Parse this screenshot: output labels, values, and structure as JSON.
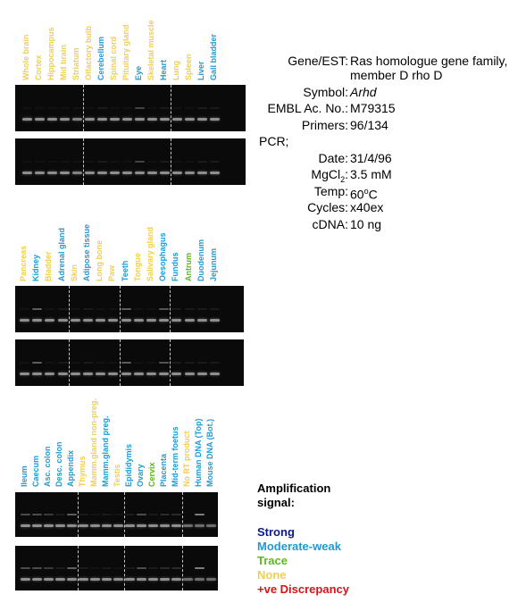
{
  "colors": {
    "strong": "#0a1a8c",
    "moderate_weak": "#1e9bd6",
    "trace": "#5cb81e",
    "none": "#f2cf4a",
    "discrepancy": "#d4161c",
    "gel_bg": "#0a0a0a"
  },
  "panels": [
    {
      "lanes": [
        {
          "label": "Whole brain",
          "signal": "none",
          "top": 0.05,
          "bottom": 0.35
        },
        {
          "label": "Cortex",
          "signal": "none",
          "top": 0.05,
          "bottom": 0.35
        },
        {
          "label": "Hippocampus",
          "signal": "none",
          "top": 0.05,
          "bottom": 0.35
        },
        {
          "label": "Mid brain",
          "signal": "none",
          "top": 0.05,
          "bottom": 0.35
        },
        {
          "label": "Striatum",
          "signal": "none",
          "top": 0.05,
          "bottom": 0.3
        },
        {
          "label": "Olfactory bulb",
          "signal": "none",
          "top": 0.05,
          "bottom": 0.35
        },
        {
          "label": "Cerebellum",
          "signal": "moderate_weak",
          "top": 0.1,
          "bottom": 0.35
        },
        {
          "label": "Spinal cord",
          "signal": "none",
          "top": 0.05,
          "bottom": 0.35
        },
        {
          "label": "Pituitary gland",
          "signal": "none",
          "top": 0.05,
          "bottom": 0.35
        },
        {
          "label": "Eye",
          "signal": "moderate_weak",
          "top": 0.35,
          "bottom": 0.35
        },
        {
          "label": "Skeletal muscle",
          "signal": "none",
          "top": 0.05,
          "bottom": 0.35
        },
        {
          "label": "Heart",
          "signal": "moderate_weak",
          "top": 0.1,
          "bottom": 0.35
        },
        {
          "label": "Lung",
          "signal": "none",
          "top": 0.05,
          "bottom": 0.35
        },
        {
          "label": "Spleen",
          "signal": "none",
          "top": 0.05,
          "bottom": 0.35
        },
        {
          "label": "Liver",
          "signal": "moderate_weak",
          "top": 0.1,
          "bottom": 0.35
        },
        {
          "label": "Gall bladder",
          "signal": "moderate_weak",
          "top": 0.1,
          "bottom": 0.35
        }
      ],
      "dividers_after": [
        4,
        11
      ]
    },
    {
      "lanes": [
        {
          "label": "Pancreas",
          "signal": "none",
          "top": 0.05,
          "bottom": 0.35
        },
        {
          "label": "Kidney",
          "signal": "moderate_weak",
          "top": 0.5,
          "bottom": 0.35
        },
        {
          "label": "Bladder",
          "signal": "none",
          "top": 0.05,
          "bottom": 0.35
        },
        {
          "label": "Adrenal gland",
          "signal": "moderate_weak",
          "top": 0.1,
          "bottom": 0.35
        },
        {
          "label": "Skin",
          "signal": "none",
          "top": 0.05,
          "bottom": 0.35
        },
        {
          "label": "Adipose tissue",
          "signal": "moderate_weak",
          "top": 0.1,
          "bottom": 0.35
        },
        {
          "label": "Long bone",
          "signal": "none",
          "top": 0.05,
          "bottom": 0.35
        },
        {
          "label": "Paw",
          "signal": "none",
          "top": 0.05,
          "bottom": 0.35
        },
        {
          "label": "Teeth",
          "signal": "moderate_weak",
          "top": 0.5,
          "bottom": 0.35
        },
        {
          "label": "Tongue",
          "signal": "none",
          "top": 0.05,
          "bottom": 0.35
        },
        {
          "label": "Salivary gland",
          "signal": "none",
          "top": 0.05,
          "bottom": 0.35
        },
        {
          "label": "Oesophagus",
          "signal": "moderate_weak",
          "top": 0.45,
          "bottom": 0.35
        },
        {
          "label": "Fundus",
          "signal": "moderate_weak",
          "top": 0.1,
          "bottom": 0.35
        },
        {
          "label": "Antrum",
          "signal": "trace",
          "top": 0.1,
          "bottom": 0.35
        },
        {
          "label": "Duodenum",
          "signal": "moderate_weak",
          "top": 0.1,
          "bottom": 0.35
        },
        {
          "label": "Jejunum",
          "signal": "moderate_weak",
          "top": 0.1,
          "bottom": 0.35
        }
      ],
      "dividers_after": [
        3,
        7,
        11
      ]
    },
    {
      "lanes": [
        {
          "label": "Ileum",
          "signal": "moderate_weak",
          "top": 0.4,
          "bottom": 0.35
        },
        {
          "label": "Caecum",
          "signal": "moderate_weak",
          "top": 0.4,
          "bottom": 0.35
        },
        {
          "label": "Asc. colon",
          "signal": "moderate_weak",
          "top": 0.3,
          "bottom": 0.35
        },
        {
          "label": "Desc. colon",
          "signal": "moderate_weak",
          "top": 0.1,
          "bottom": 0.35
        },
        {
          "label": "Appendix",
          "signal": "moderate_weak",
          "top": 0.5,
          "bottom": 0.35
        },
        {
          "label": "Thymus",
          "signal": "none",
          "top": 0.1,
          "bottom": 0.35
        },
        {
          "label": "Mamm.gland non-preg.",
          "signal": "none",
          "top": 0.05,
          "bottom": 0.35
        },
        {
          "label": "Mamm.gland preg.",
          "signal": "moderate_weak",
          "top": 0.1,
          "bottom": 0.35
        },
        {
          "label": "Testis",
          "signal": "none",
          "top": 0.05,
          "bottom": 0.35
        },
        {
          "label": "Epididymis",
          "signal": "moderate_weak",
          "top": 0.1,
          "bottom": 0.35
        },
        {
          "label": "Ovary",
          "signal": "moderate_weak",
          "top": 0.4,
          "bottom": 0.35
        },
        {
          "label": "Cervix",
          "signal": "trace",
          "top": 0.1,
          "bottom": 0.35
        },
        {
          "label": "Placenta",
          "signal": "moderate_weak",
          "top": 0.2,
          "bottom": 0.35
        },
        {
          "label": "Mid-term foetus",
          "signal": "moderate_weak",
          "top": 0.2,
          "bottom": 0.35
        },
        {
          "label": "No RT product",
          "signal": "none",
          "top": 0.0,
          "bottom": 0.2
        },
        {
          "label": "Human DNA (Top)",
          "signal": "moderate_weak",
          "top": 0.7,
          "bottom": 0.2
        },
        {
          "label": "Mouse DNA (Bot.)",
          "signal": "moderate_weak",
          "top": 0.0,
          "bottom": 0.2
        }
      ],
      "dividers_after": [
        4,
        8,
        13
      ]
    }
  ],
  "info": [
    {
      "key": "Gene/EST:",
      "value": "Ras homologue gene family,",
      "value2": "member D rho D"
    },
    {
      "key": "Symbol:",
      "value": "Arhd",
      "italic": true
    },
    {
      "key": "EMBL Ac. No.:",
      "value": "M79315"
    },
    {
      "key": "Primers:",
      "value": "96/134"
    },
    {
      "key": "PCR;",
      "value": "",
      "left": true
    },
    {
      "key": "Date:",
      "value": "31/4/96"
    },
    {
      "key": "MgCl2:",
      "value": "3.5 mM",
      "sub": true
    },
    {
      "key": "Temp:",
      "value": "60oC",
      "sup": true
    },
    {
      "key": "Cycles:",
      "value": "x40ex"
    },
    {
      "key": "cDNA:",
      "value": "10 ng"
    }
  ],
  "legend": {
    "title_line1": "Amplification",
    "title_line2": "signal:",
    "items": [
      {
        "label": "Strong",
        "signal": "strong"
      },
      {
        "label": "Moderate-weak",
        "signal": "moderate_weak"
      },
      {
        "label": "Trace",
        "signal": "trace"
      },
      {
        "label": "None",
        "signal": "none"
      },
      {
        "label": "+ve Discrepancy",
        "signal": "discrepancy"
      }
    ]
  }
}
